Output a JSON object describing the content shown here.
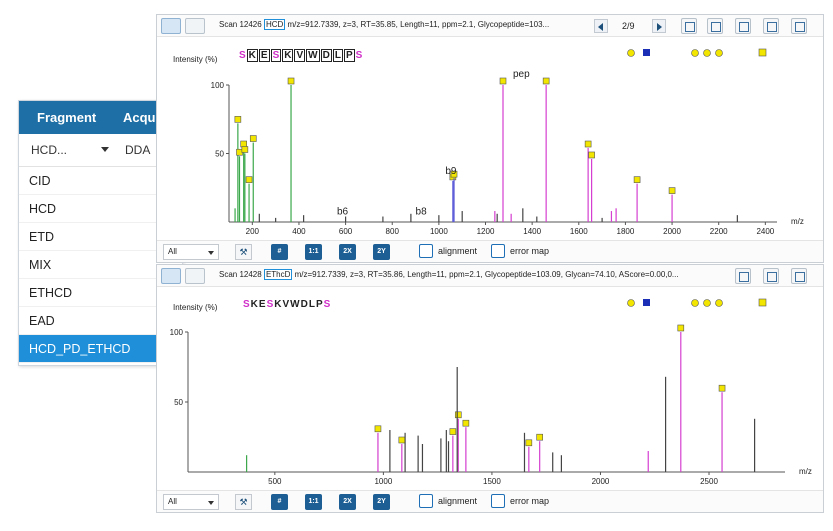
{
  "left_panel": {
    "headers": [
      "Fragment",
      "Acqu"
    ],
    "combo_values": [
      "HCD...",
      "DDA"
    ],
    "options": [
      "CID",
      "HCD",
      "ETD",
      "MIX",
      "ETHCD",
      "EAD",
      "HCD_PD_ETHCD"
    ],
    "selected_index": 6
  },
  "panel1": {
    "scan_prefix": "Scan 12426",
    "frag_method": "HCD",
    "scan_suffix": "m/z=912.7339, z=3, RT=35.85, Length=11, ppm=2.1, Glycopeptide=103...",
    "page": "2/9",
    "ylabel": "Intensity (%)",
    "xlabel": "m/z",
    "yticks": [
      "100",
      "50"
    ],
    "xticks": [
      "200",
      "400",
      "600",
      "800",
      "1000",
      "1200",
      "1400",
      "1600",
      "1800",
      "2000",
      "2200",
      "2400"
    ],
    "sequence": [
      "S",
      "K",
      "E",
      "S",
      "K",
      "V",
      "W",
      "D",
      "L",
      "P",
      "S"
    ],
    "peak_labels": [
      "pep",
      "b9",
      "b6",
      "b8"
    ],
    "bottom_select": "All",
    "btn_11": "1:1",
    "btn_2x": "2X",
    "btn_2y": "2Y",
    "alignment_label": "alignment",
    "errormap_label": "error map"
  },
  "panel2": {
    "scan_prefix": "Scan 12428",
    "frag_method": "EThcD",
    "scan_suffix": "m/z=912.7339, z=3, RT=35.86, Length=11, ppm=2.1, Glycopeptide=103.09, Glycan=74.10, AScore=0.00,0...",
    "ylabel": "Intensity (%)",
    "xlabel": "m/z",
    "yticks": [
      "100",
      "50"
    ],
    "xticks": [
      "500",
      "1000",
      "1500",
      "2000",
      "2500"
    ],
    "sequence": [
      "S",
      "K",
      "E",
      "S",
      "K",
      "V",
      "W",
      "D",
      "L",
      "P",
      "S"
    ],
    "bottom_select": "All",
    "btn_11": "1:1",
    "btn_2x": "2X",
    "btn_2y": "2Y",
    "alignment_label": "alignment",
    "errormap_label": "error map"
  },
  "chart_data": [
    {
      "type": "bar",
      "title": "",
      "xlabel": "m/z",
      "ylabel": "Intensity (%)",
      "xlim": [
        100,
        2450
      ],
      "ylim": [
        0,
        100
      ],
      "series": [
        {
          "values": [
            [
              126,
              10
            ],
            [
              138,
              72
            ],
            [
              145,
              48
            ],
            [
              163,
              54
            ],
            [
              168,
              50
            ],
            [
              186,
              28
            ],
            [
              204,
              58
            ],
            [
              366,
              100
            ]
          ]
        },
        {
          "values": [
            [
              1060,
              30
            ],
            [
              1065,
              32
            ]
          ]
        },
        {
          "values": [
            [
              1240,
              8
            ],
            [
              1275,
              100
            ],
            [
              1310,
              6
            ],
            [
              1460,
              100
            ],
            [
              1640,
              54
            ],
            [
              1655,
              46
            ],
            [
              1740,
              8
            ],
            [
              1760,
              10
            ],
            [
              1850,
              28
            ],
            [
              2000,
              20
            ]
          ]
        },
        {
          "values": [
            [
              230,
              6
            ],
            [
              300,
              3
            ],
            [
              420,
              5
            ],
            [
              600,
              4
            ],
            [
              760,
              4
            ],
            [
              880,
              6
            ],
            [
              1000,
              5
            ],
            [
              1100,
              8
            ],
            [
              1250,
              6
            ],
            [
              1360,
              10
            ],
            [
              1420,
              4
            ],
            [
              1700,
              3
            ],
            [
              2280,
              5
            ]
          ]
        }
      ]
    },
    {
      "type": "bar",
      "title": "",
      "xlabel": "m/z",
      "ylabel": "Intensity (%)",
      "xlim": [
        100,
        2850
      ],
      "ylim": [
        0,
        100
      ],
      "series": [
        {
          "values": [
            [
              370,
              12
            ]
          ]
        },
        {
          "values": [
            [
              975,
              28
            ],
            [
              1085,
              20
            ],
            [
              1320,
              26
            ],
            [
              1345,
              38
            ],
            [
              1380,
              32
            ],
            [
              1670,
              18
            ],
            [
              1720,
              22
            ],
            [
              2220,
              15
            ],
            [
              2370,
              100
            ],
            [
              2560,
              57
            ]
          ]
        },
        {
          "values": [
            [
              1030,
              30
            ],
            [
              1100,
              28
            ],
            [
              1160,
              26
            ],
            [
              1180,
              20
            ],
            [
              1265,
              24
            ],
            [
              1290,
              30
            ],
            [
              1300,
              22
            ],
            [
              1340,
              75
            ],
            [
              1650,
              28
            ],
            [
              1780,
              14
            ],
            [
              1820,
              12
            ],
            [
              2300,
              68
            ],
            [
              2710,
              38
            ]
          ]
        }
      ]
    }
  ]
}
